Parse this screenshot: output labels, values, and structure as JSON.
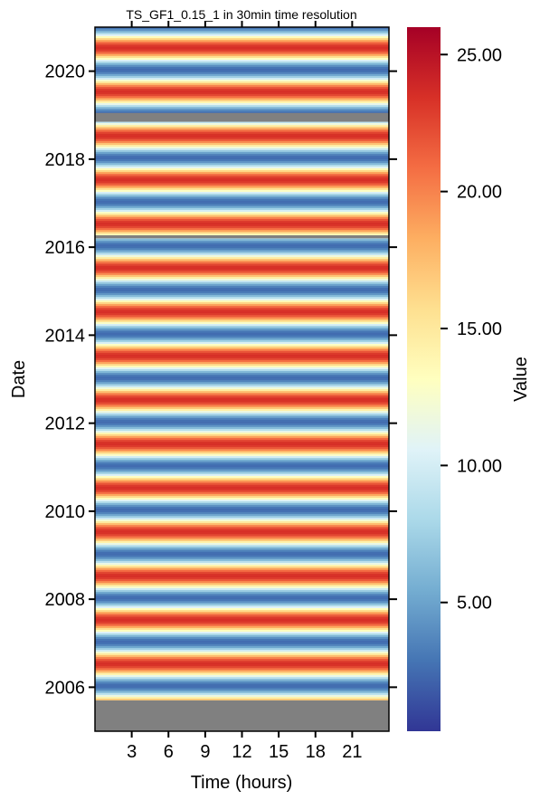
{
  "chart_data": {
    "type": "heatmap",
    "title": "TS_GF1_0.15_1 in 30min time resolution",
    "xlabel": "Time (hours)",
    "ylabel": "Date",
    "x_ticks": [
      3,
      6,
      9,
      12,
      15,
      18,
      21
    ],
    "xlim": [
      0,
      24
    ],
    "y_ticks": [
      2006,
      2008,
      2010,
      2012,
      2014,
      2016,
      2018,
      2020
    ],
    "ylim": [
      2005.0,
      2021.0
    ],
    "colorbar": {
      "label": "Value",
      "range": [
        0.3,
        26.0
      ],
      "ticks": [
        5.0,
        10.0,
        15.0,
        20.0,
        25.0
      ],
      "tick_labels": [
        "5.00",
        "10.00",
        "15.00",
        "20.00",
        "25.00"
      ],
      "colormap": "RdYlBu_r",
      "colors": [
        "#313695",
        "#4575b4",
        "#74add1",
        "#abd9e9",
        "#e0f3f8",
        "#ffffbf",
        "#fee090",
        "#fdae61",
        "#f46d43",
        "#d73027",
        "#a50026"
      ]
    },
    "missing_color": "#808080",
    "seasonal_model": {
      "mean": 13.0,
      "amplitude": 10.5,
      "peak_fraction_of_year": 0.55,
      "start_year": 2005.7,
      "end_year": 2021.0
    },
    "missing_periods": [
      {
        "from": 2005.0,
        "to": 2005.7
      },
      {
        "from": 2018.85,
        "to": 2019.05
      },
      {
        "from": 2016.2,
        "to": 2016.27
      }
    ]
  }
}
